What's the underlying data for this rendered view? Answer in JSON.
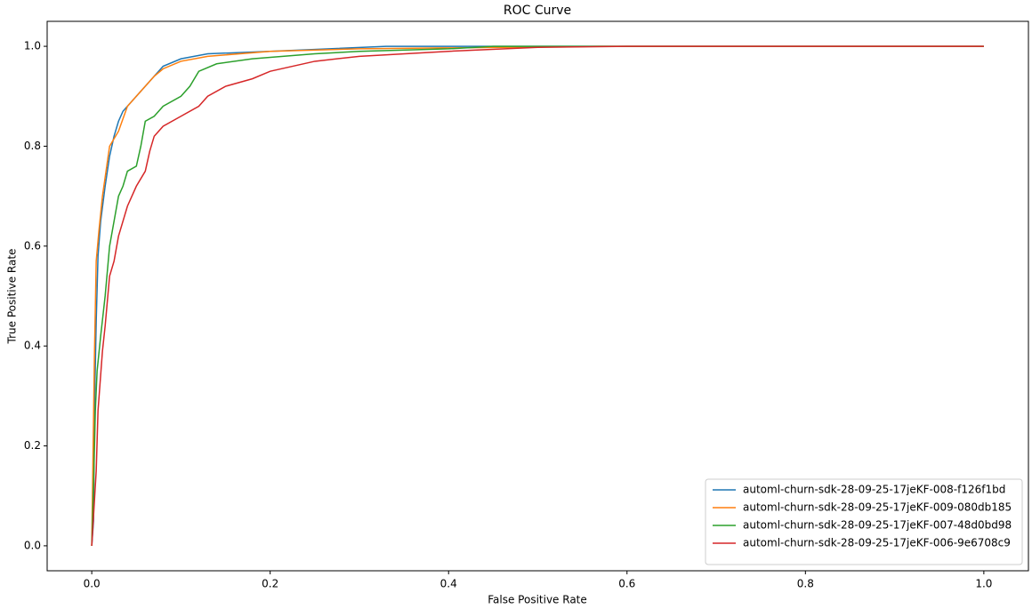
{
  "chart_data": {
    "type": "line",
    "title": "ROC Curve",
    "x_label": "False Positive Rate",
    "y_label": "True Positive Rate",
    "xlim": [
      -0.05,
      1.05
    ],
    "ylim": [
      -0.05,
      1.05
    ],
    "xticks": [
      {
        "value": 0,
        "label": "0.0"
      },
      0.2,
      0.4,
      0.6,
      0.8,
      {
        "value": 1,
        "label": "1.0"
      }
    ],
    "yticks": [
      {
        "value": 0,
        "label": "0.0"
      },
      0.2,
      0.4,
      0.6,
      0.8,
      {
        "value": 1,
        "label": "1.0"
      }
    ],
    "grid": false,
    "legend": "lower right",
    "series": [
      {
        "name": "automl-churn-sdk-28-09-25-17jeKF-008-f126f1bd",
        "color": "#1f77b4",
        "x": [
          0,
          0.002,
          0.003,
          0.005,
          0.007,
          0.01,
          0.015,
          0.02,
          0.025,
          0.03,
          0.035,
          0.04,
          0.05,
          0.06,
          0.07,
          0.08,
          0.1,
          0.13,
          0.2,
          0.33,
          1
        ],
        "values": [
          0,
          0.05,
          0.27,
          0.45,
          0.58,
          0.65,
          0.72,
          0.78,
          0.82,
          0.85,
          0.87,
          0.88,
          0.9,
          0.92,
          0.94,
          0.96,
          0.975,
          0.985,
          0.99,
          1,
          1
        ]
      },
      {
        "name": "automl-churn-sdk-28-09-25-17jeKF-009-080db185",
        "color": "#ff7f0e",
        "x": [
          0,
          0.003,
          0.005,
          0.008,
          0.012,
          0.02,
          0.03,
          0.04,
          0.05,
          0.06,
          0.07,
          0.08,
          0.1,
          0.13,
          0.2,
          0.3,
          0.57,
          1
        ],
        "values": [
          0,
          0.38,
          0.57,
          0.63,
          0.7,
          0.8,
          0.83,
          0.88,
          0.9,
          0.92,
          0.94,
          0.955,
          0.97,
          0.98,
          0.99,
          0.995,
          1,
          1
        ]
      },
      {
        "name": "automl-churn-sdk-28-09-25-17jeKF-007-48d0bd98",
        "color": "#2ca02c",
        "x": [
          0,
          0.002,
          0.004,
          0.006,
          0.01,
          0.015,
          0.02,
          0.025,
          0.03,
          0.035,
          0.04,
          0.05,
          0.055,
          0.06,
          0.07,
          0.08,
          0.1,
          0.11,
          0.12,
          0.14,
          0.18,
          0.25,
          0.3,
          0.4,
          0.45,
          1
        ],
        "values": [
          0,
          0.12,
          0.27,
          0.35,
          0.42,
          0.5,
          0.6,
          0.65,
          0.7,
          0.72,
          0.75,
          0.76,
          0.8,
          0.85,
          0.86,
          0.88,
          0.9,
          0.92,
          0.95,
          0.965,
          0.975,
          0.985,
          0.99,
          0.995,
          1,
          1
        ]
      },
      {
        "name": "automl-churn-sdk-28-09-25-17jeKF-006-9e6708c9",
        "color": "#d62728",
        "x": [
          0,
          0.005,
          0.007,
          0.012,
          0.015,
          0.02,
          0.025,
          0.03,
          0.04,
          0.05,
          0.06,
          0.065,
          0.07,
          0.08,
          0.1,
          0.12,
          0.13,
          0.15,
          0.18,
          0.2,
          0.25,
          0.3,
          0.4,
          0.5,
          0.6,
          1
        ],
        "values": [
          0,
          0.15,
          0.27,
          0.39,
          0.44,
          0.54,
          0.57,
          0.62,
          0.68,
          0.72,
          0.75,
          0.79,
          0.82,
          0.84,
          0.86,
          0.88,
          0.9,
          0.92,
          0.935,
          0.95,
          0.97,
          0.98,
          0.99,
          0.998,
          1,
          1
        ]
      }
    ]
  }
}
